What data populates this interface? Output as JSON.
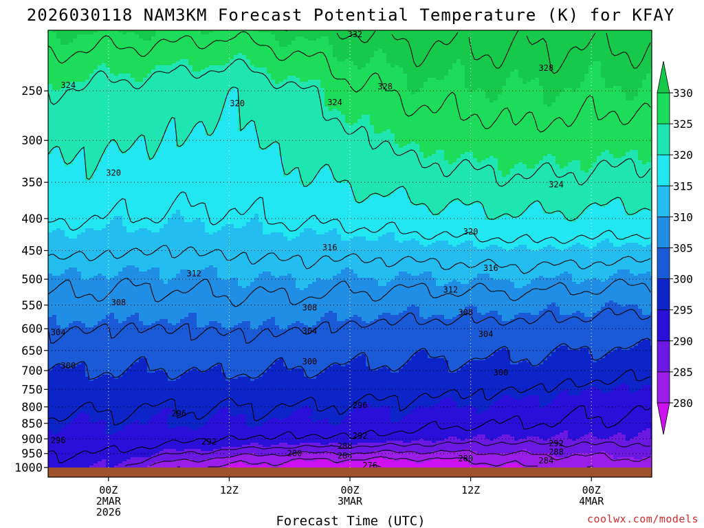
{
  "chart_data": {
    "type": "heatmap",
    "title": "2026030118 NAM3KM Forecast Potential Temperature (K) for KFAY",
    "xlabel": "Forecast Time (UTC)",
    "ylabel": "",
    "y_scale": "log-pressure (inverted)",
    "y_ticks": [
      250,
      300,
      350,
      400,
      450,
      500,
      550,
      600,
      650,
      700,
      750,
      800,
      850,
      900,
      950,
      1000
    ],
    "ylim": [
      1000,
      200
    ],
    "x_ticks": [
      {
        "hour": 6,
        "label": [
          "00Z",
          "2MAR",
          "2026"
        ]
      },
      {
        "hour": 18,
        "label": [
          "12Z"
        ]
      },
      {
        "hour": 30,
        "label": [
          "00Z",
          "3MAR"
        ]
      },
      {
        "hour": 42,
        "label": [
          "12Z"
        ]
      },
      {
        "hour": 54,
        "label": [
          "00Z",
          "4MAR"
        ]
      }
    ],
    "xlim": [
      0,
      60
    ],
    "grid": "dotted",
    "colorbar": {
      "levels": [
        280,
        285,
        290,
        295,
        300,
        305,
        310,
        315,
        320,
        325,
        330
      ],
      "colors": [
        "#cc11ee",
        "#9a1ee8",
        "#6a18e2",
        "#2a0fd8",
        "#0c24c8",
        "#1a5ad6",
        "#1f8ee4",
        "#24bdf0",
        "#22e6f2",
        "#1fe6b0",
        "#1cdc5a",
        "#16c94a"
      ],
      "extend": "both"
    },
    "profile_pressures": [
      1000,
      975,
      950,
      925,
      900,
      875,
      850,
      800,
      750,
      700,
      650,
      600,
      550,
      500,
      450,
      400,
      350,
      300,
      250,
      200
    ],
    "theta_profiles": [
      {
        "hour": 0,
        "theta": [
          290,
          291,
          292,
          293,
          294,
          294.5,
          295,
          297,
          298.5,
          300,
          302.5,
          304.5,
          307,
          309.5,
          313,
          316.5,
          319,
          321,
          324,
          330.5
        ]
      },
      {
        "hour": 6,
        "theta": [
          290,
          291,
          292,
          293,
          294,
          294.5,
          295,
          296.5,
          298.5,
          300,
          302,
          304,
          306.5,
          309,
          312.5,
          316,
          318.5,
          320.5,
          323,
          330
        ]
      },
      {
        "hour": 12,
        "theta": [
          281,
          285,
          289,
          291.5,
          293,
          294,
          295,
          296,
          298,
          300,
          302,
          304,
          306.5,
          309,
          312,
          315.5,
          318,
          320,
          322,
          330
        ]
      },
      {
        "hour": 18,
        "theta": [
          279,
          282,
          286,
          290,
          292,
          293.5,
          294.5,
          296,
          298,
          300.5,
          302.5,
          304.5,
          307,
          309.5,
          312.5,
          315.5,
          317.5,
          319,
          320.5,
          329
        ]
      },
      {
        "hour": 24,
        "theta": [
          278,
          280,
          284,
          288.5,
          291.5,
          293,
          294.5,
          296,
          298,
          300,
          302,
          304.5,
          307,
          310,
          313,
          316.5,
          319,
          321,
          323,
          331
        ]
      },
      {
        "hour": 30,
        "theta": [
          277,
          279.5,
          284,
          288.5,
          291.5,
          293,
          294,
          295.5,
          297.5,
          299.5,
          301.5,
          303.5,
          306.5,
          309.5,
          313,
          317,
          320.5,
          323,
          327,
          332
        ]
      },
      {
        "hour": 36,
        "theta": [
          276,
          279,
          283,
          287.5,
          290.5,
          292,
          293.5,
          295,
          297,
          299,
          301,
          303,
          306,
          309.5,
          313.5,
          318,
          322,
          325.5,
          329,
          333
        ]
      },
      {
        "hour": 42,
        "theta": [
          278,
          280,
          283.5,
          287,
          289.5,
          291,
          292.5,
          294.5,
          296.5,
          299,
          301,
          303,
          306,
          310,
          314,
          319,
          323,
          326.5,
          329.5,
          333
        ]
      },
      {
        "hour": 48,
        "theta": [
          280,
          282,
          284.5,
          287,
          289.5,
          291,
          292,
          294,
          296,
          298.5,
          300.5,
          303,
          306,
          310,
          314.5,
          319.5,
          323.5,
          327,
          330,
          333
        ]
      },
      {
        "hour": 54,
        "theta": [
          281,
          283,
          285,
          287.5,
          289.5,
          290.5,
          291.5,
          293,
          295,
          297.5,
          300,
          302.5,
          305.5,
          309.5,
          314,
          319,
          323,
          326.5,
          329.5,
          333
        ]
      },
      {
        "hour": 60,
        "theta": [
          281.5,
          283.5,
          285.5,
          287.5,
          289.5,
          290.5,
          291.5,
          292.5,
          294.5,
          297,
          299.5,
          302,
          305,
          309,
          313.5,
          318.5,
          322.5,
          326,
          329.5,
          333
        ]
      }
    ],
    "contour_interval": 4,
    "contour_labels": [
      {
        "text": "332",
        "hour": 30.5,
        "p": 203
      },
      {
        "text": "328",
        "hour": 49.5,
        "p": 230
      },
      {
        "text": "328",
        "hour": 33.5,
        "p": 246
      },
      {
        "text": "324",
        "hour": 2,
        "p": 245
      },
      {
        "text": "324",
        "hour": 28.5,
        "p": 261
      },
      {
        "text": "320",
        "hour": 18.8,
        "p": 262
      },
      {
        "text": "320",
        "hour": 6.5,
        "p": 338
      },
      {
        "text": "324",
        "hour": 50.5,
        "p": 353
      },
      {
        "text": "320",
        "hour": 42,
        "p": 420
      },
      {
        "text": "316",
        "hour": 28,
        "p": 445
      },
      {
        "text": "316",
        "hour": 44,
        "p": 480
      },
      {
        "text": "312",
        "hour": 14.5,
        "p": 490
      },
      {
        "text": "312",
        "hour": 40,
        "p": 520
      },
      {
        "text": "308",
        "hour": 7,
        "p": 545
      },
      {
        "text": "308",
        "hour": 26,
        "p": 555
      },
      {
        "text": "308",
        "hour": 41.5,
        "p": 565
      },
      {
        "text": "304",
        "hour": 1,
        "p": 608
      },
      {
        "text": "304",
        "hour": 26,
        "p": 605
      },
      {
        "text": "304",
        "hour": 43.5,
        "p": 612
      },
      {
        "text": "300",
        "hour": 2,
        "p": 688
      },
      {
        "text": "300",
        "hour": 26,
        "p": 677
      },
      {
        "text": "300",
        "hour": 45,
        "p": 705
      },
      {
        "text": "296",
        "hour": 13,
        "p": 820
      },
      {
        "text": "296",
        "hour": 31,
        "p": 795
      },
      {
        "text": "296",
        "hour": 1,
        "p": 905
      },
      {
        "text": "292",
        "hour": 16,
        "p": 910
      },
      {
        "text": "292",
        "hour": 31,
        "p": 890
      },
      {
        "text": "292",
        "hour": 50.5,
        "p": 915
      },
      {
        "text": "288",
        "hour": 29.5,
        "p": 925
      },
      {
        "text": "288",
        "hour": 50.5,
        "p": 945
      },
      {
        "text": "284",
        "hour": 29.5,
        "p": 958
      },
      {
        "text": "284",
        "hour": 49.5,
        "p": 975
      },
      {
        "text": "280",
        "hour": 24.5,
        "p": 950
      },
      {
        "text": "280",
        "hour": 41.5,
        "p": 968
      },
      {
        "text": "276",
        "hour": 32,
        "p": 992
      }
    ]
  },
  "watermark": "coolwx.com/models"
}
